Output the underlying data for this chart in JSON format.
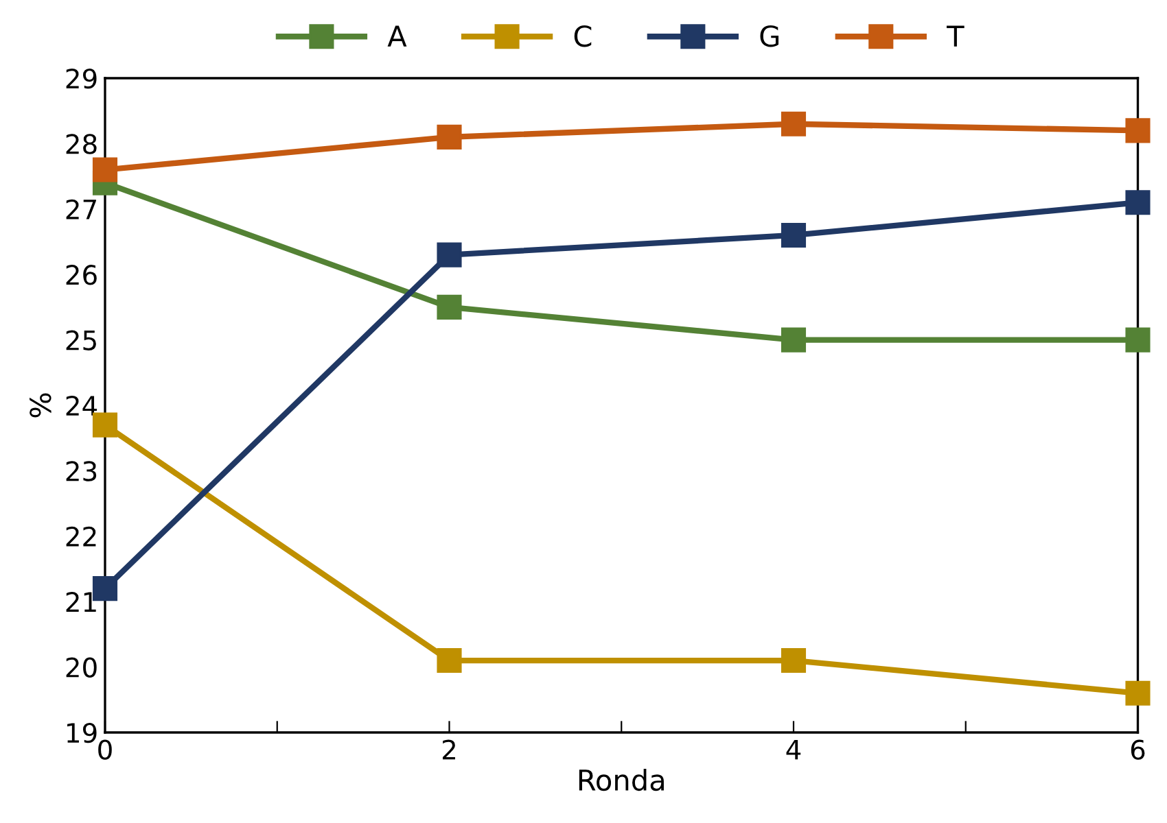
{
  "chart_data": {
    "type": "line",
    "xlabel": "Ronda",
    "ylabel": "%",
    "x": [
      0,
      2,
      4,
      6
    ],
    "series": [
      {
        "name": "A",
        "color": "#548235",
        "values": [
          27.4,
          25.5,
          25.0,
          25.0
        ]
      },
      {
        "name": "C",
        "color": "#bf9000",
        "values": [
          23.7,
          20.1,
          20.1,
          19.6
        ]
      },
      {
        "name": "G",
        "color": "#203864",
        "values": [
          21.2,
          26.3,
          26.6,
          27.1
        ]
      },
      {
        "name": "T",
        "color": "#c55a11",
        "values": [
          27.6,
          28.1,
          28.3,
          28.2
        ]
      }
    ],
    "xlim": [
      0,
      6
    ],
    "ylim": [
      19,
      29
    ],
    "xticks": [
      0,
      {
        "value": 1,
        "label": null
      },
      2,
      {
        "value": 3,
        "label": null
      },
      4,
      {
        "value": 5,
        "label": null
      },
      6
    ],
    "yticks": [
      19,
      20,
      21,
      22,
      23,
      24,
      25,
      26,
      27,
      28,
      29
    ],
    "grid": false,
    "legend": "top",
    "marker": "square",
    "line_style": "solid"
  }
}
